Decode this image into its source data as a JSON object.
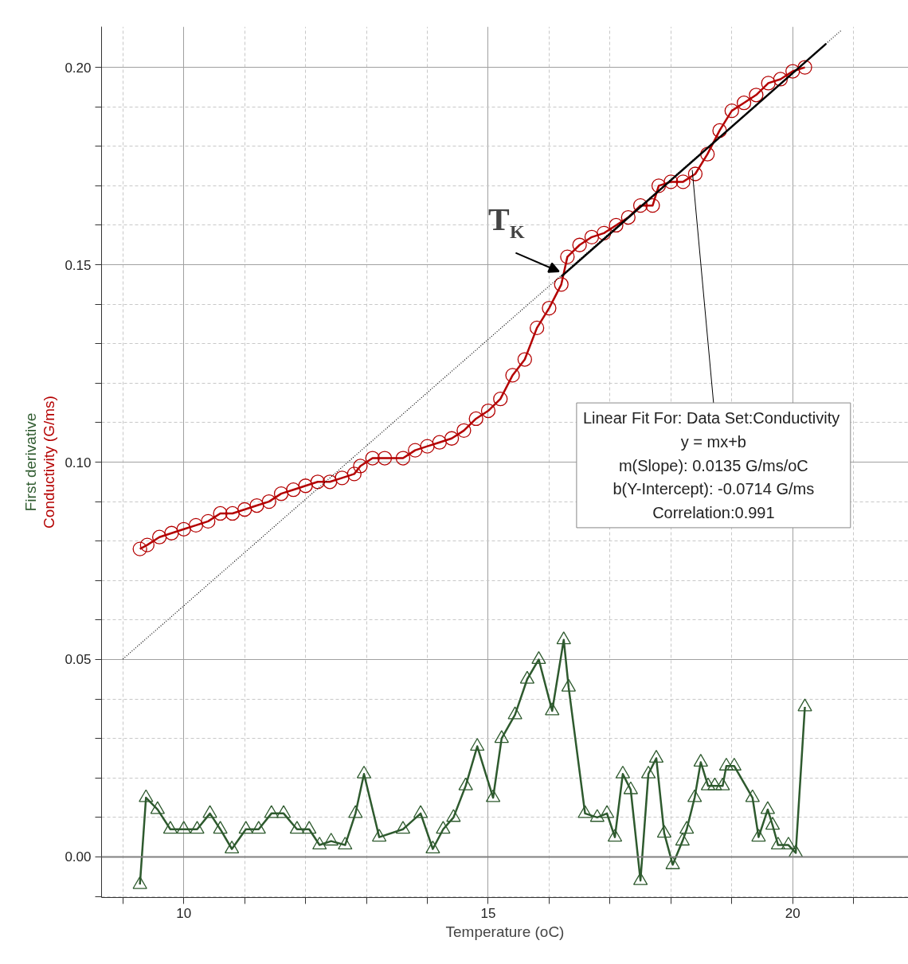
{
  "chart_data": {
    "type": "line",
    "xlabel": "Temperature (oC)",
    "xlim": [
      8.65,
      21.9
    ],
    "ylim": [
      -0.0103,
      0.2103
    ],
    "xticks": [
      {
        "value": 9,
        "label": null
      },
      10,
      {
        "value": 11,
        "label": null
      },
      {
        "value": 12,
        "label": null
      },
      {
        "value": 13,
        "label": null
      },
      {
        "value": 14,
        "label": null
      },
      15,
      {
        "value": 16,
        "label": null
      },
      {
        "value": 17,
        "label": null
      },
      {
        "value": 18,
        "label": null
      },
      {
        "value": 19,
        "label": null
      },
      20,
      {
        "value": 21,
        "label": null
      }
    ],
    "yticks": [
      {
        "value": -0.01,
        "label": null
      },
      {
        "value": 0,
        "label": "0.00"
      },
      {
        "value": 0.01,
        "label": null
      },
      {
        "value": 0.02,
        "label": null
      },
      {
        "value": 0.03,
        "label": null
      },
      {
        "value": 0.04,
        "label": null
      },
      {
        "value": 0.05,
        "label": "0.05"
      },
      {
        "value": 0.06,
        "label": null
      },
      {
        "value": 0.07,
        "label": null
      },
      {
        "value": 0.08,
        "label": null
      },
      {
        "value": 0.09,
        "label": null
      },
      {
        "value": 0.1,
        "label": "0.10"
      },
      {
        "value": 0.11,
        "label": null
      },
      {
        "value": 0.12,
        "label": null
      },
      {
        "value": 0.13,
        "label": null
      },
      {
        "value": 0.14,
        "label": null
      },
      {
        "value": 0.15,
        "label": "0.15"
      },
      {
        "value": 0.16,
        "label": null
      },
      {
        "value": 0.17,
        "label": null
      },
      {
        "value": 0.18,
        "label": null
      },
      {
        "value": 0.19,
        "label": null
      },
      {
        "value": 0.2,
        "label": "0.20"
      }
    ],
    "grid": true,
    "series": [
      {
        "name": "Conductivity (G/ms)",
        "color": "#b40000",
        "marker": "circle",
        "x": [
          9.28,
          9.4,
          9.6,
          9.8,
          10.0,
          10.2,
          10.4,
          10.6,
          10.8,
          11.0,
          11.2,
          11.4,
          11.6,
          11.8,
          12.0,
          12.2,
          12.4,
          12.6,
          12.8,
          12.9,
          13.1,
          13.3,
          13.6,
          13.8,
          14.0,
          14.2,
          14.4,
          14.6,
          14.8,
          15.0,
          15.2,
          15.4,
          15.6,
          15.8,
          16.0,
          16.2,
          16.3,
          16.5,
          16.7,
          16.9,
          17.1,
          17.3,
          17.5,
          17.7,
          17.8,
          18.0,
          18.2,
          18.4,
          18.6,
          18.8,
          19.0,
          19.2,
          19.4,
          19.6,
          19.8,
          20.0,
          20.2
        ],
        "values": [
          0.078,
          0.079,
          0.081,
          0.082,
          0.083,
          0.084,
          0.085,
          0.087,
          0.087,
          0.088,
          0.089,
          0.09,
          0.092,
          0.093,
          0.094,
          0.095,
          0.095,
          0.096,
          0.097,
          0.099,
          0.101,
          0.101,
          0.101,
          0.103,
          0.104,
          0.105,
          0.106,
          0.108,
          0.111,
          0.113,
          0.116,
          0.122,
          0.126,
          0.134,
          0.139,
          0.145,
          0.152,
          0.155,
          0.157,
          0.158,
          0.16,
          0.162,
          0.165,
          0.165,
          0.17,
          0.171,
          0.171,
          0.173,
          0.178,
          0.184,
          0.189,
          0.191,
          0.193,
          0.196,
          0.197,
          0.199,
          0.2
        ]
      },
      {
        "name": "First derivative",
        "color": "#2e5a2e",
        "marker": "triangle",
        "x": [
          9.28,
          9.38,
          9.57,
          9.78,
          10.0,
          10.22,
          10.43,
          10.6,
          10.79,
          11.02,
          11.23,
          11.44,
          11.64,
          11.86,
          12.06,
          12.23,
          12.42,
          12.65,
          12.82,
          12.96,
          13.21,
          13.6,
          13.89,
          14.09,
          14.26,
          14.43,
          14.63,
          14.82,
          15.08,
          15.22,
          15.44,
          15.64,
          15.83,
          16.05,
          16.24,
          16.32,
          16.59,
          16.79,
          16.95,
          17.08,
          17.21,
          17.34,
          17.5,
          17.63,
          17.76,
          17.89,
          18.03,
          18.19,
          18.26,
          18.39,
          18.49,
          18.61,
          18.72,
          18.85,
          18.91,
          19.04,
          19.34,
          19.44,
          19.59,
          19.67,
          19.76,
          19.93,
          20.05,
          20.2
        ],
        "values": [
          -0.007,
          0.015,
          0.012,
          0.007,
          0.007,
          0.007,
          0.011,
          0.007,
          0.002,
          0.007,
          0.007,
          0.011,
          0.011,
          0.007,
          0.007,
          0.003,
          0.004,
          0.003,
          0.011,
          0.021,
          0.005,
          0.007,
          0.011,
          0.002,
          0.007,
          0.01,
          0.018,
          0.028,
          0.015,
          0.03,
          0.036,
          0.045,
          0.05,
          0.037,
          0.055,
          0.043,
          0.011,
          0.01,
          0.011,
          0.005,
          0.021,
          0.017,
          -0.006,
          0.021,
          0.025,
          0.006,
          -0.002,
          0.004,
          0.007,
          0.015,
          0.024,
          0.018,
          0.018,
          0.018,
          0.023,
          0.023,
          0.015,
          0.005,
          0.012,
          0.008,
          0.003,
          0.003,
          0.001,
          0.038
        ]
      },
      {
        "color": "#000000",
        "marker": "none",
        "x": [
          16.2,
          20.55
        ],
        "values": [
          0.147,
          0.206
        ]
      },
      {
        "color": "#000000",
        "marker": "none",
        "line_style": "dotted",
        "x": [
          9.0,
          20.8
        ],
        "values": [
          0.0501,
          0.2094
        ]
      }
    ],
    "ref_lines": [
      {
        "axis": "y",
        "value": 0,
        "color": "#808080"
      }
    ],
    "annotations": [
      {
        "text": "T$_{K}$",
        "x": 16.2,
        "y": 0.148
      },
      {
        "text": "Linear Fit For:  Data Set:Conductivity\ny = mx+b\nm(Slope): 0.0135 G/ms/oC\nb(Y-Intercept): -0.0714 G/ms\nCorrelation:0.991",
        "x": 18.35,
        "y": 0.174
      }
    ]
  }
}
